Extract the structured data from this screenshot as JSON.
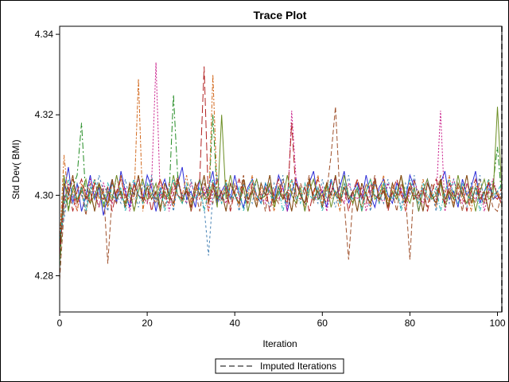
{
  "chart_data": {
    "type": "line",
    "title": "Trace Plot",
    "xlabel": "Iteration",
    "ylabel": "Std Dev( BMI)",
    "xlim": [
      0,
      101
    ],
    "ylim": [
      4.271,
      4.342
    ],
    "x_ticks": [
      0,
      20,
      40,
      60,
      80,
      100
    ],
    "x_tick_labels": [
      "0",
      "20",
      "40",
      "60",
      "80",
      "100"
    ],
    "y_ticks": [
      4.28,
      4.3,
      4.32,
      4.34
    ],
    "y_tick_labels": [
      "4.28",
      "4.30",
      "4.32",
      "4.34"
    ],
    "grid": false,
    "legend_position": "bottom",
    "legend": [
      {
        "label": "Imputed Iterations",
        "style": "dashed",
        "color": "#808080"
      }
    ],
    "reference_lines": [
      {
        "x": 101,
        "style": "dashed",
        "color": "#808080"
      }
    ],
    "series_colors": [
      "#2b2bd6",
      "#a0522d",
      "#228b22",
      "#c71585",
      "#d2691e",
      "#4682b4",
      "#6b8e23",
      "#b22222",
      "#8b4513",
      "#20b2aa"
    ],
    "series_dash": [
      "",
      "6,3",
      "8,3,2,3",
      "2,2",
      "5,2,2,2",
      "3,3",
      "",
      "10,4",
      "",
      "4,2,1,2"
    ],
    "series": [
      {
        "values": [
          4.284,
          4.301,
          4.307,
          4.298,
          4.303,
          4.296,
          4.3,
          4.305,
          4.299,
          4.302,
          4.295,
          4.3,
          4.304,
          4.298,
          4.306,
          4.301,
          4.297,
          4.303,
          4.3,
          4.299,
          4.305,
          4.302,
          4.296,
          4.301,
          4.304,
          4.3,
          4.298,
          4.303,
          4.307,
          4.299,
          4.301,
          4.297,
          4.304,
          4.3,
          4.302,
          4.306,
          4.298,
          4.301,
          4.303,
          4.299,
          4.305,
          4.3,
          4.297,
          4.302,
          4.304,
          4.3,
          4.298,
          4.303,
          4.301,
          4.299,
          4.305,
          4.302,
          4.296,
          4.301,
          4.304,
          4.3,
          4.298,
          4.303,
          4.306,
          4.299,
          4.301,
          4.297,
          4.304,
          4.3,
          4.302,
          4.306,
          4.298,
          4.301,
          4.303,
          4.299,
          4.305,
          4.3,
          4.297,
          4.302,
          4.304,
          4.3,
          4.298,
          4.303,
          4.301,
          4.299,
          4.305,
          4.302,
          4.296,
          4.301,
          4.304,
          4.3,
          4.298,
          4.303,
          4.306,
          4.299,
          4.301,
          4.297,
          4.304,
          4.3,
          4.302,
          4.306,
          4.298,
          4.301,
          4.303,
          4.299,
          4.3,
          4.298
        ]
      },
      {
        "values": [
          4.279,
          4.296,
          4.3,
          4.304,
          4.298,
          4.301,
          4.295,
          4.303,
          4.3,
          4.297,
          4.302,
          4.283,
          4.3,
          4.298,
          4.305,
          4.299,
          4.301,
          4.296,
          4.303,
          4.3,
          4.298,
          4.304,
          4.299,
          4.301,
          4.297,
          4.303,
          4.3,
          4.305,
          4.298,
          4.302,
          4.299,
          4.301,
          4.296,
          4.303,
          4.3,
          4.298,
          4.304,
          4.299,
          4.301,
          4.297,
          4.303,
          4.3,
          4.305,
          4.298,
          4.302,
          4.299,
          4.301,
          4.296,
          4.303,
          4.3,
          4.298,
          4.304,
          4.299,
          4.301,
          4.297,
          4.303,
          4.3,
          4.305,
          4.298,
          4.302,
          4.299,
          4.301,
          4.31,
          4.322,
          4.3,
          4.298,
          4.284,
          4.299,
          4.301,
          4.297,
          4.303,
          4.3,
          4.305,
          4.298,
          4.302,
          4.299,
          4.301,
          4.296,
          4.303,
          4.3,
          4.284,
          4.304,
          4.299,
          4.301,
          4.297,
          4.303,
          4.3,
          4.305,
          4.298,
          4.302,
          4.299,
          4.301,
          4.296,
          4.303,
          4.3,
          4.298,
          4.304,
          4.299,
          4.301,
          4.297,
          4.296,
          4.301
        ]
      },
      {
        "values": [
          4.282,
          4.3,
          4.297,
          4.302,
          4.305,
          4.318,
          4.299,
          4.301,
          4.296,
          4.303,
          4.3,
          4.298,
          4.304,
          4.299,
          4.301,
          4.297,
          4.303,
          4.3,
          4.305,
          4.298,
          4.302,
          4.299,
          4.301,
          4.296,
          4.303,
          4.3,
          4.325,
          4.304,
          4.299,
          4.301,
          4.297,
          4.303,
          4.3,
          4.305,
          4.298,
          4.32,
          4.299,
          4.301,
          4.296,
          4.303,
          4.3,
          4.298,
          4.304,
          4.299,
          4.301,
          4.297,
          4.303,
          4.3,
          4.305,
          4.298,
          4.302,
          4.299,
          4.301,
          4.296,
          4.303,
          4.3,
          4.298,
          4.304,
          4.299,
          4.301,
          4.297,
          4.303,
          4.3,
          4.305,
          4.298,
          4.302,
          4.299,
          4.301,
          4.296,
          4.303,
          4.3,
          4.298,
          4.304,
          4.299,
          4.301,
          4.297,
          4.303,
          4.3,
          4.305,
          4.298,
          4.302,
          4.299,
          4.301,
          4.296,
          4.303,
          4.3,
          4.298,
          4.304,
          4.299,
          4.301,
          4.297,
          4.303,
          4.3,
          4.305,
          4.298,
          4.302,
          4.299,
          4.301,
          4.296,
          4.303,
          4.312,
          4.299
        ]
      },
      {
        "values": [
          4.286,
          4.298,
          4.303,
          4.3,
          4.296,
          4.302,
          4.299,
          4.304,
          4.301,
          4.297,
          4.303,
          4.3,
          4.298,
          4.305,
          4.299,
          4.302,
          4.296,
          4.301,
          4.304,
          4.3,
          4.298,
          4.303,
          4.333,
          4.299,
          4.302,
          4.296,
          4.301,
          4.304,
          4.3,
          4.298,
          4.303,
          4.3,
          4.299,
          4.302,
          4.296,
          4.301,
          4.304,
          4.3,
          4.298,
          4.303,
          4.3,
          4.299,
          4.302,
          4.296,
          4.301,
          4.304,
          4.3,
          4.298,
          4.303,
          4.3,
          4.299,
          4.302,
          4.296,
          4.321,
          4.304,
          4.3,
          4.298,
          4.303,
          4.3,
          4.299,
          4.302,
          4.296,
          4.301,
          4.304,
          4.3,
          4.298,
          4.303,
          4.3,
          4.299,
          4.302,
          4.296,
          4.301,
          4.304,
          4.3,
          4.298,
          4.303,
          4.3,
          4.299,
          4.302,
          4.296,
          4.301,
          4.304,
          4.3,
          4.298,
          4.303,
          4.3,
          4.299,
          4.321,
          4.296,
          4.301,
          4.304,
          4.3,
          4.298,
          4.303,
          4.3,
          4.299,
          4.302,
          4.296,
          4.301,
          4.304,
          4.3,
          4.298
        ]
      },
      {
        "values": [
          4.288,
          4.31,
          4.299,
          4.301,
          4.296,
          4.303,
          4.3,
          4.298,
          4.304,
          4.299,
          4.301,
          4.297,
          4.303,
          4.3,
          4.305,
          4.298,
          4.302,
          4.299,
          4.329,
          4.296,
          4.303,
          4.3,
          4.298,
          4.304,
          4.299,
          4.301,
          4.297,
          4.303,
          4.3,
          4.305,
          4.298,
          4.302,
          4.299,
          4.301,
          4.296,
          4.33,
          4.3,
          4.298,
          4.304,
          4.299,
          4.301,
          4.297,
          4.303,
          4.3,
          4.305,
          4.298,
          4.302,
          4.299,
          4.301,
          4.296,
          4.303,
          4.3,
          4.298,
          4.304,
          4.299,
          4.301,
          4.297,
          4.303,
          4.3,
          4.305,
          4.298,
          4.302,
          4.299,
          4.301,
          4.296,
          4.303,
          4.3,
          4.298,
          4.304,
          4.299,
          4.301,
          4.297,
          4.303,
          4.3,
          4.305,
          4.298,
          4.302,
          4.299,
          4.301,
          4.296,
          4.303,
          4.3,
          4.298,
          4.304,
          4.299,
          4.301,
          4.297,
          4.303,
          4.3,
          4.305,
          4.298,
          4.302,
          4.299,
          4.301,
          4.296,
          4.303,
          4.3,
          4.298,
          4.304,
          4.299,
          4.301,
          4.297
        ]
      },
      {
        "values": [
          4.29,
          4.294,
          4.301,
          4.298,
          4.303,
          4.3,
          4.297,
          4.302,
          4.299,
          4.305,
          4.301,
          4.296,
          4.303,
          4.3,
          4.298,
          4.304,
          4.299,
          4.301,
          4.297,
          4.303,
          4.3,
          4.305,
          4.298,
          4.302,
          4.299,
          4.301,
          4.296,
          4.303,
          4.3,
          4.298,
          4.304,
          4.299,
          4.301,
          4.297,
          4.285,
          4.3,
          4.305,
          4.298,
          4.302,
          4.299,
          4.301,
          4.296,
          4.303,
          4.3,
          4.298,
          4.304,
          4.299,
          4.301,
          4.297,
          4.303,
          4.3,
          4.305,
          4.298,
          4.302,
          4.299,
          4.301,
          4.296,
          4.303,
          4.3,
          4.298,
          4.304,
          4.299,
          4.301,
          4.297,
          4.303,
          4.3,
          4.305,
          4.298,
          4.302,
          4.299,
          4.301,
          4.296,
          4.303,
          4.3,
          4.298,
          4.304,
          4.299,
          4.301,
          4.297,
          4.303,
          4.3,
          4.305,
          4.298,
          4.302,
          4.299,
          4.301,
          4.296,
          4.303,
          4.3,
          4.298,
          4.304,
          4.299,
          4.301,
          4.297,
          4.303,
          4.3,
          4.305,
          4.298,
          4.302,
          4.299,
          4.301,
          4.3
        ]
      },
      {
        "values": [
          4.283,
          4.305,
          4.296,
          4.302,
          4.299,
          4.301,
          4.304,
          4.298,
          4.3,
          4.303,
          4.297,
          4.301,
          4.299,
          4.305,
          4.3,
          4.298,
          4.302,
          4.296,
          4.301,
          4.304,
          4.299,
          4.3,
          4.303,
          4.297,
          4.301,
          4.299,
          4.305,
          4.3,
          4.298,
          4.302,
          4.296,
          4.301,
          4.304,
          4.299,
          4.3,
          4.303,
          4.297,
          4.32,
          4.299,
          4.305,
          4.3,
          4.298,
          4.302,
          4.296,
          4.301,
          4.304,
          4.299,
          4.3,
          4.303,
          4.297,
          4.301,
          4.299,
          4.305,
          4.3,
          4.298,
          4.302,
          4.296,
          4.301,
          4.304,
          4.299,
          4.3,
          4.303,
          4.297,
          4.301,
          4.299,
          4.305,
          4.3,
          4.298,
          4.302,
          4.296,
          4.301,
          4.304,
          4.299,
          4.3,
          4.303,
          4.297,
          4.301,
          4.299,
          4.305,
          4.3,
          4.298,
          4.302,
          4.296,
          4.301,
          4.304,
          4.299,
          4.3,
          4.303,
          4.297,
          4.301,
          4.299,
          4.305,
          4.3,
          4.298,
          4.302,
          4.296,
          4.301,
          4.304,
          4.299,
          4.3,
          4.322,
          4.301
        ]
      },
      {
        "values": [
          4.285,
          4.299,
          4.302,
          4.296,
          4.301,
          4.304,
          4.3,
          4.298,
          4.303,
          4.3,
          4.299,
          4.302,
          4.296,
          4.301,
          4.304,
          4.3,
          4.298,
          4.303,
          4.3,
          4.299,
          4.302,
          4.296,
          4.301,
          4.304,
          4.3,
          4.298,
          4.303,
          4.3,
          4.299,
          4.302,
          4.296,
          4.301,
          4.304,
          4.332,
          4.298,
          4.303,
          4.3,
          4.299,
          4.302,
          4.296,
          4.301,
          4.304,
          4.3,
          4.298,
          4.303,
          4.3,
          4.299,
          4.302,
          4.296,
          4.301,
          4.304,
          4.3,
          4.298,
          4.318,
          4.3,
          4.299,
          4.302,
          4.296,
          4.301,
          4.304,
          4.3,
          4.298,
          4.303,
          4.3,
          4.299,
          4.302,
          4.296,
          4.301,
          4.304,
          4.3,
          4.298,
          4.303,
          4.3,
          4.299,
          4.302,
          4.296,
          4.301,
          4.304,
          4.3,
          4.298,
          4.303,
          4.3,
          4.299,
          4.302,
          4.296,
          4.301,
          4.304,
          4.3,
          4.298,
          4.303,
          4.3,
          4.299,
          4.302,
          4.296,
          4.301,
          4.304,
          4.3,
          4.298,
          4.303,
          4.3,
          4.299,
          4.302
        ]
      },
      {
        "values": [
          4.287,
          4.303,
          4.3,
          4.305,
          4.298,
          4.302,
          4.299,
          4.301,
          4.296,
          4.303,
          4.3,
          4.298,
          4.304,
          4.299,
          4.301,
          4.297,
          4.303,
          4.3,
          4.305,
          4.298,
          4.302,
          4.299,
          4.301,
          4.296,
          4.303,
          4.3,
          4.298,
          4.304,
          4.299,
          4.301,
          4.297,
          4.303,
          4.3,
          4.305,
          4.298,
          4.302,
          4.299,
          4.301,
          4.296,
          4.303,
          4.3,
          4.298,
          4.304,
          4.299,
          4.301,
          4.297,
          4.303,
          4.3,
          4.305,
          4.298,
          4.302,
          4.299,
          4.301,
          4.296,
          4.303,
          4.3,
          4.298,
          4.304,
          4.299,
          4.301,
          4.297,
          4.303,
          4.3,
          4.305,
          4.298,
          4.302,
          4.299,
          4.301,
          4.296,
          4.303,
          4.3,
          4.298,
          4.304,
          4.299,
          4.301,
          4.297,
          4.303,
          4.3,
          4.305,
          4.298,
          4.302,
          4.299,
          4.301,
          4.296,
          4.303,
          4.3,
          4.298,
          4.304,
          4.299,
          4.301,
          4.297,
          4.303,
          4.3,
          4.305,
          4.298,
          4.302,
          4.299,
          4.301,
          4.296,
          4.303,
          4.3,
          4.299
        ]
      },
      {
        "values": [
          4.289,
          4.297,
          4.304,
          4.3,
          4.299,
          4.302,
          4.296,
          4.301,
          4.304,
          4.3,
          4.298,
          4.303,
          4.3,
          4.299,
          4.302,
          4.296,
          4.301,
          4.304,
          4.3,
          4.298,
          4.303,
          4.3,
          4.299,
          4.302,
          4.296,
          4.301,
          4.304,
          4.3,
          4.298,
          4.303,
          4.3,
          4.299,
          4.302,
          4.296,
          4.301,
          4.304,
          4.3,
          4.298,
          4.303,
          4.3,
          4.299,
          4.302,
          4.296,
          4.301,
          4.304,
          4.3,
          4.298,
          4.303,
          4.3,
          4.299,
          4.302,
          4.296,
          4.301,
          4.304,
          4.3,
          4.298,
          4.303,
          4.3,
          4.299,
          4.302,
          4.296,
          4.301,
          4.304,
          4.3,
          4.298,
          4.303,
          4.3,
          4.299,
          4.302,
          4.296,
          4.301,
          4.304,
          4.3,
          4.298,
          4.303,
          4.3,
          4.299,
          4.302,
          4.296,
          4.301,
          4.304,
          4.3,
          4.298,
          4.303,
          4.3,
          4.299,
          4.302,
          4.296,
          4.301,
          4.304,
          4.3,
          4.298,
          4.303,
          4.3,
          4.299,
          4.302,
          4.296,
          4.301,
          4.304,
          4.3,
          4.301,
          4.303
        ]
      }
    ]
  }
}
